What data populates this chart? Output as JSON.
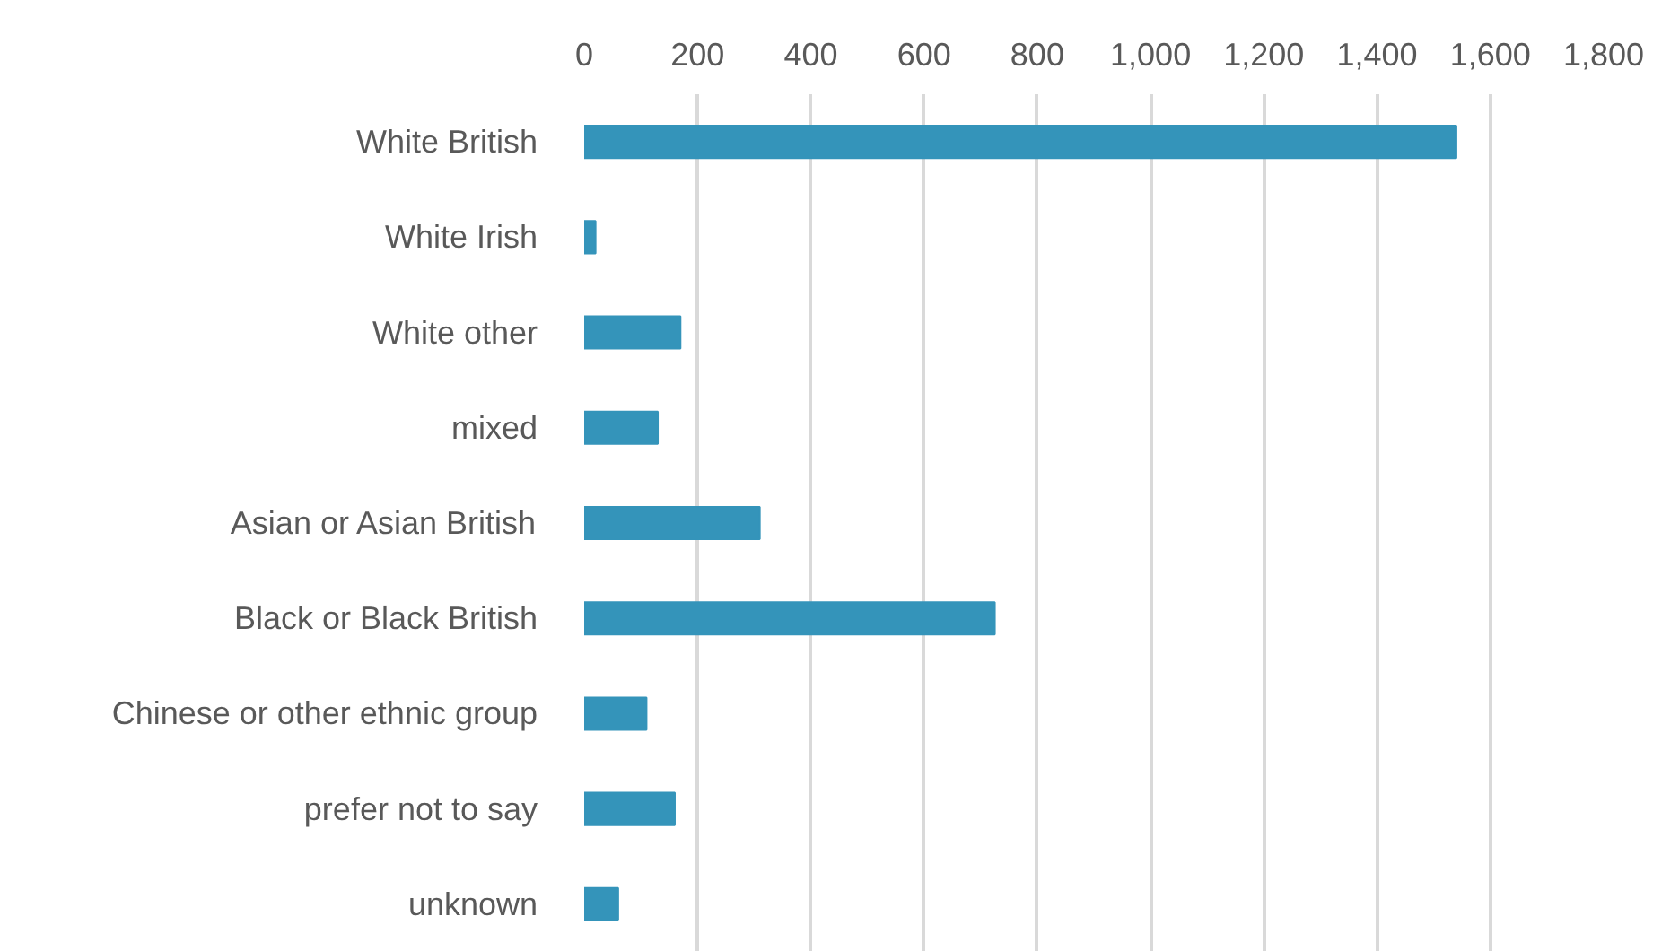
{
  "chart_data": {
    "type": "bar",
    "orientation": "horizontal",
    "categories": [
      "White British",
      "White Irish",
      "White other",
      "mixed",
      "Asian or Asian British",
      "Black or Black British",
      "Chinese or other ethnic group",
      "prefer not to say",
      "unknown"
    ],
    "values": [
      1540,
      20,
      170,
      130,
      310,
      725,
      110,
      160,
      60
    ],
    "color": "#3494ba",
    "xlim": [
      0,
      1800
    ],
    "xticks": [
      0,
      200,
      400,
      {
        "value": 600,
        "label": "600"
      },
      800,
      {
        "value": 1000,
        "label": "1,000"
      },
      {
        "value": 1200,
        "label": "1,200"
      },
      {
        "value": 1400,
        "label": "1,400"
      },
      {
        "value": 1600,
        "label": "1,600"
      },
      {
        "value": 1800,
        "label": "1,800"
      }
    ],
    "grid": "x"
  }
}
